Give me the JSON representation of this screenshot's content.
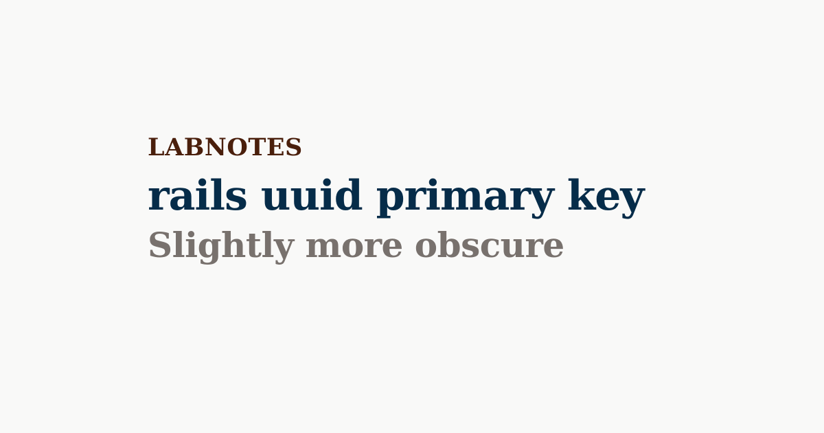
{
  "brand": {
    "name": "LABNOTES",
    "color": "#4a1f0c"
  },
  "post": {
    "title": "rails uuid primary key",
    "title_color": "#062c49",
    "subtitle": "Slightly more obscure",
    "subtitle_color": "#78716d"
  },
  "page": {
    "background_color": "#f9f9f8"
  }
}
